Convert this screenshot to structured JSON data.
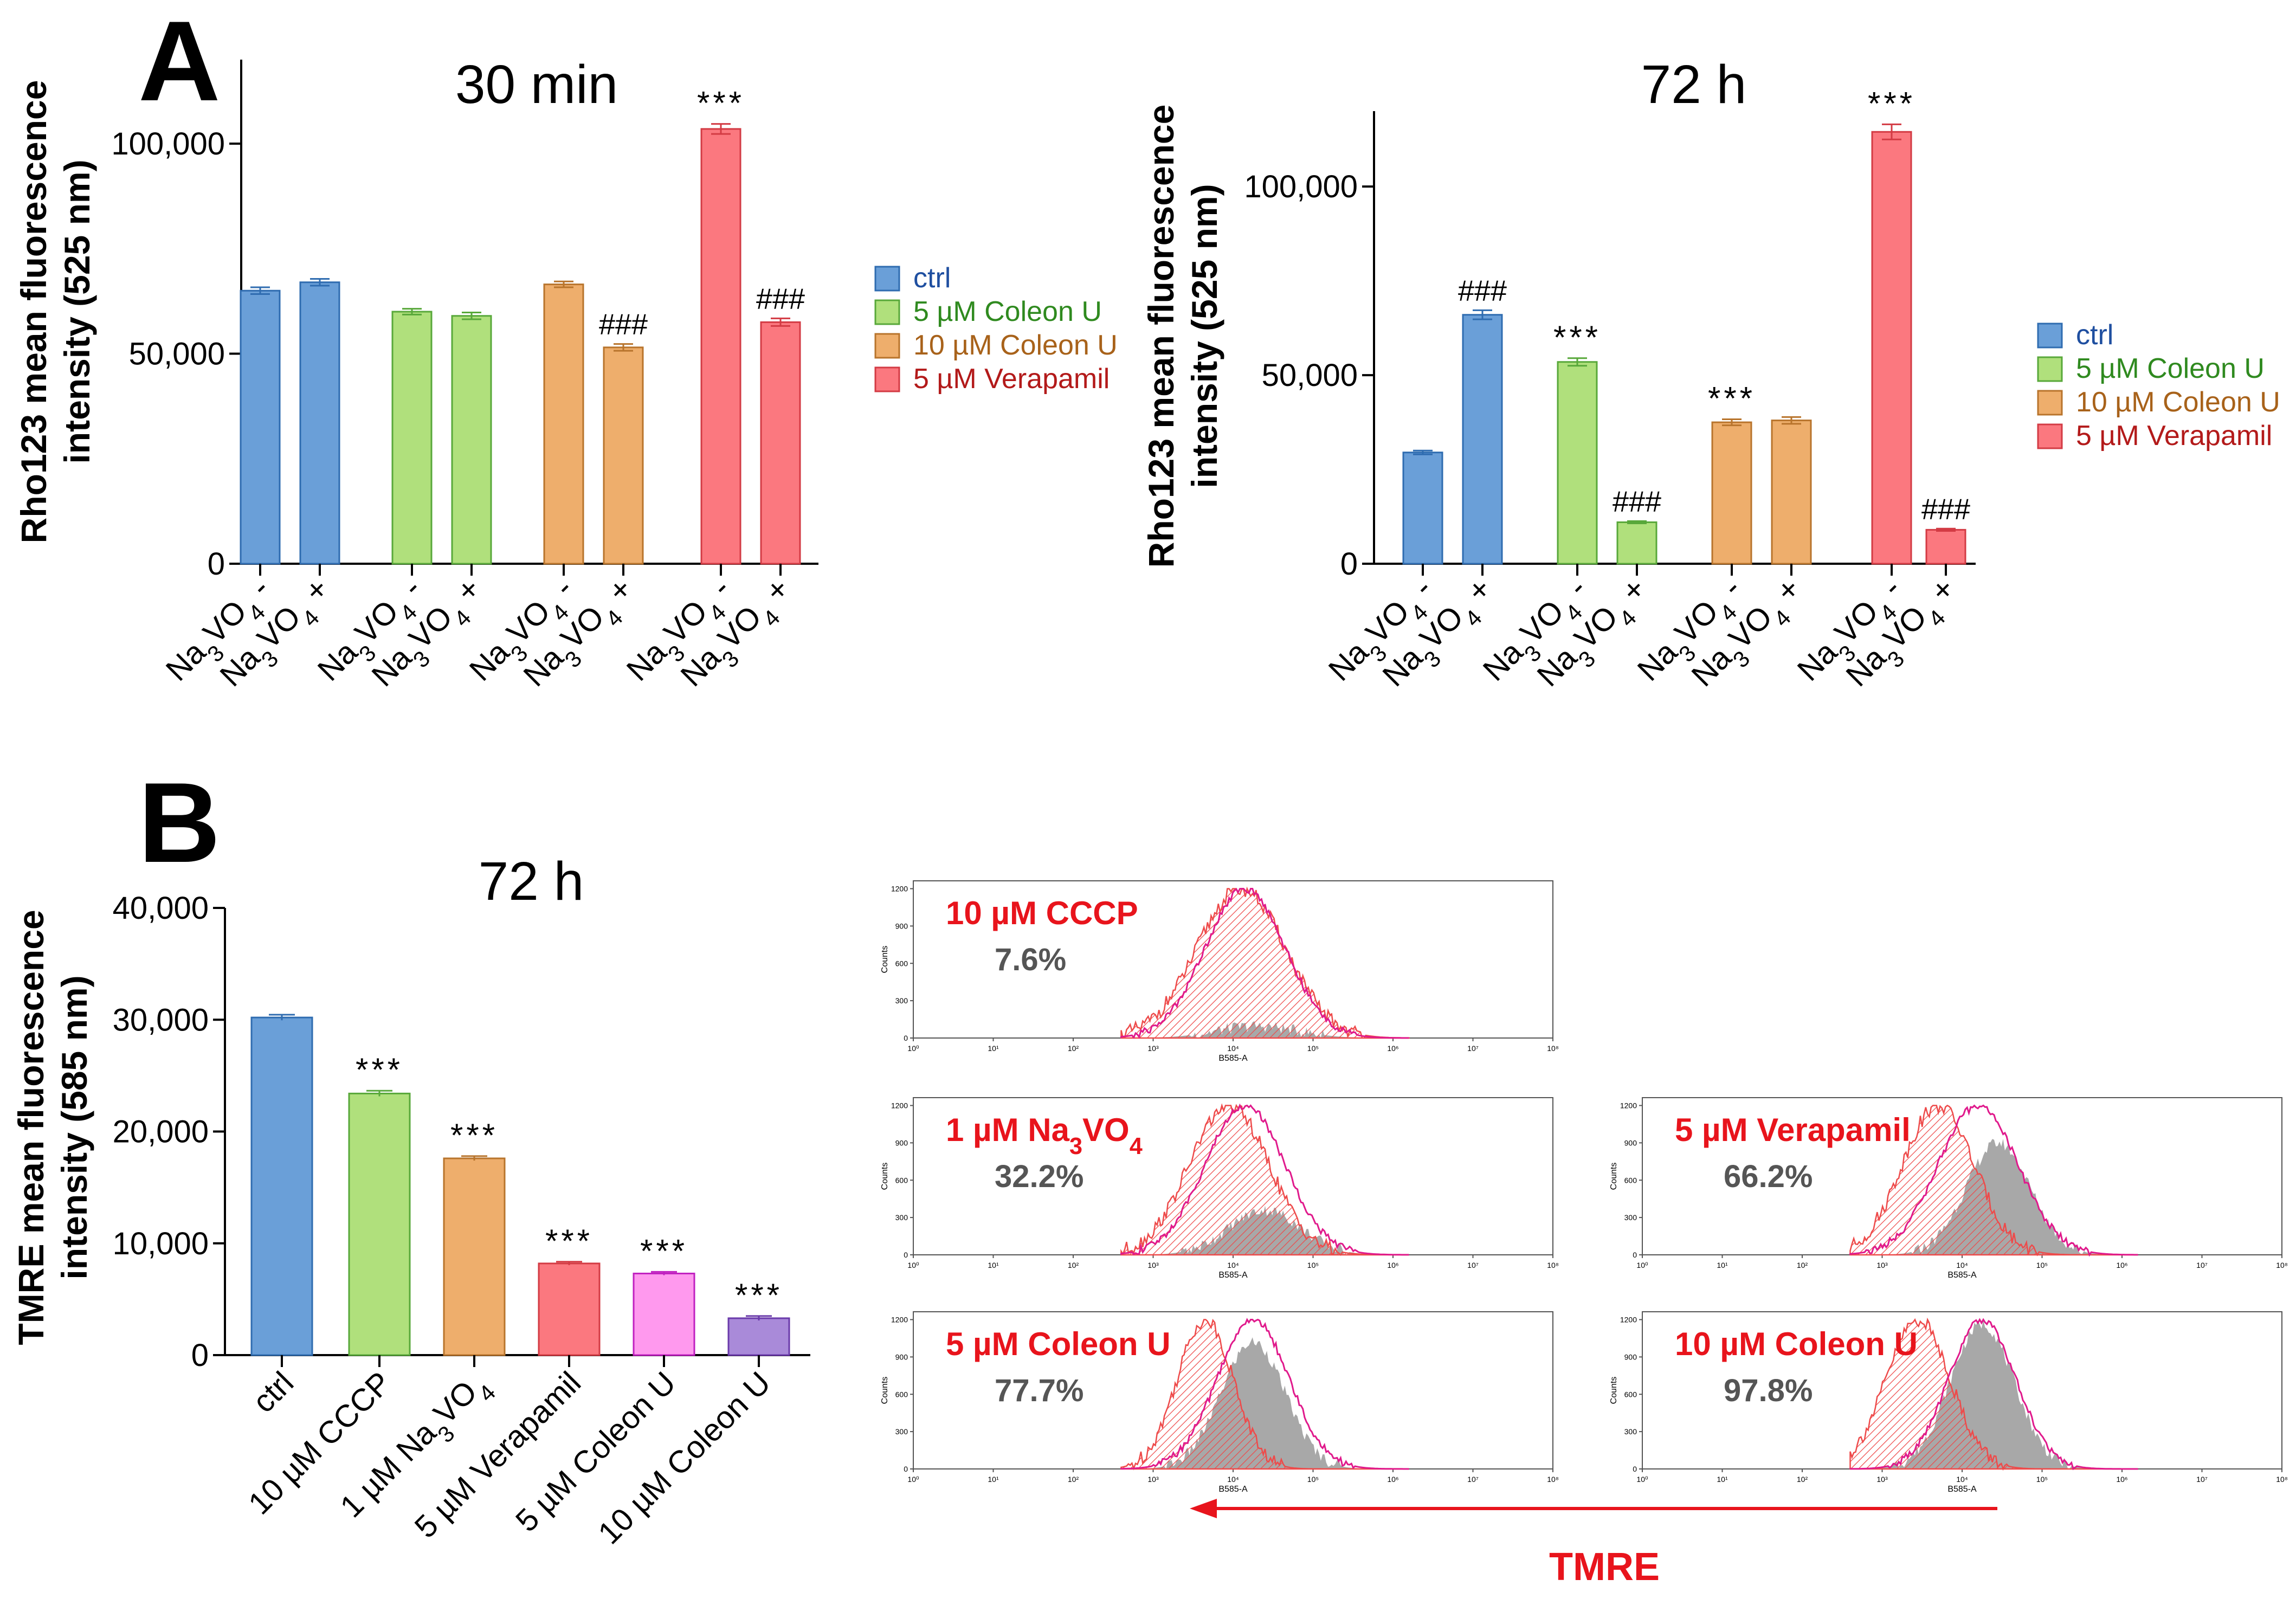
{
  "panels": {
    "a_letter": "A",
    "b_letter": "B"
  },
  "legend": [
    {
      "label": "ctrl",
      "color": "#6a9fd8",
      "stroke": "#2f6cb0",
      "text_color": "#1f4fa0"
    },
    {
      "label": "5 µM Coleon U",
      "color": "#b0e07c",
      "stroke": "#58a83a",
      "text_color": "#2f8a1f"
    },
    {
      "label": "10 µM Coleon U",
      "color": "#eeae6c",
      "stroke": "#b8742c",
      "text_color": "#a8621a"
    },
    {
      "label": "5 µM Verapamil",
      "color": "#fb787f",
      "stroke": "#d33b44",
      "text_color": "#b31a1a"
    }
  ],
  "chart_data": [
    {
      "id": "a30",
      "type": "bar",
      "title": "30 min",
      "ylabel": [
        "Rho123 mean fluorescence",
        "intensity (525 nm)"
      ],
      "ylim": [
        0,
        120000
      ],
      "yticks": [
        0,
        50000,
        100000
      ],
      "ytick_labels": [
        "0",
        "50,000",
        "100,000"
      ],
      "xtick_labels": [
        "Na3VO4 -",
        "Na3VO4 +",
        "Na3VO4 -",
        "Na3VO4 +",
        "Na3VO4 -",
        "Na3VO4 +",
        "Na3VO4 -",
        "Na3VO4 +"
      ],
      "series": [
        {
          "name": "ctrl",
          "values": [
            65000,
            67000
          ],
          "errors": [
            800,
            800
          ],
          "annotations": [
            "",
            ""
          ]
        },
        {
          "name": "5 µM Coleon U",
          "values": [
            60000,
            59000
          ],
          "errors": [
            700,
            800
          ],
          "annotations": [
            "",
            ""
          ]
        },
        {
          "name": "10 µM Coleon U",
          "values": [
            66500,
            51500
          ],
          "errors": [
            700,
            800
          ],
          "annotations": [
            "",
            "###"
          ]
        },
        {
          "name": "5 µM Verapamil",
          "values": [
            103500,
            57500
          ],
          "errors": [
            1200,
            900
          ],
          "annotations": [
            "***",
            "###"
          ]
        }
      ]
    },
    {
      "id": "a72",
      "type": "bar",
      "title": "72 h",
      "ylabel": [
        "Rho123 mean fluorescence",
        "intensity (525 nm)"
      ],
      "ylim": [
        0,
        120000
      ],
      "yticks": [
        0,
        50000,
        100000
      ],
      "ytick_labels": [
        "0",
        "50,000",
        "100,000"
      ],
      "xtick_labels": [
        "Na3VO4 -",
        "Na3VO4 +",
        "Na3VO4 -",
        "Na3VO4 +",
        "Na3VO4 -",
        "Na3VO4 +",
        "Na3VO4 -",
        "Na3VO4 +"
      ],
      "series": [
        {
          "name": "ctrl",
          "values": [
            29500,
            66000
          ],
          "errors": [
            500,
            1200
          ],
          "annotations": [
            "",
            "###"
          ]
        },
        {
          "name": "5 µM Coleon U",
          "values": [
            53500,
            11000
          ],
          "errors": [
            1000,
            300
          ],
          "annotations": [
            "***",
            "###"
          ]
        },
        {
          "name": "10 µM Coleon U",
          "values": [
            37500,
            38000
          ],
          "errors": [
            800,
            900
          ],
          "annotations": [
            "***",
            ""
          ]
        },
        {
          "name": "5 µM Verapamil",
          "values": [
            114500,
            9000
          ],
          "errors": [
            2000,
            300
          ],
          "annotations": [
            "***",
            "###"
          ]
        }
      ]
    },
    {
      "id": "b72",
      "type": "bar",
      "title": "72 h",
      "ylabel": [
        "TMRE mean fluorescence",
        "intensity (585 nm)"
      ],
      "ylim": [
        0,
        40000
      ],
      "yticks": [
        0,
        10000,
        20000,
        30000,
        40000
      ],
      "ytick_labels": [
        "0",
        "10,000",
        "20,000",
        "30,000",
        "40,000"
      ],
      "categories": [
        "ctrl",
        "10 µM CCCP",
        "1 µM Na3VO4",
        "5 µM Verapamil",
        "5 µM Coleon U",
        "10 µM Coleon U"
      ],
      "values": [
        30200,
        23400,
        17600,
        8200,
        7300,
        3300
      ],
      "errors": [
        250,
        250,
        200,
        150,
        150,
        200
      ],
      "annotations": [
        "",
        "***",
        "***",
        "***",
        "***",
        "***"
      ],
      "colors": [
        "#6a9fd8",
        "#b0e07c",
        "#eeae6c",
        "#fb787f",
        "#ff99ee",
        "#a98ad9"
      ],
      "strokes": [
        "#2f6cb0",
        "#58a83a",
        "#b8742c",
        "#d33b44",
        "#c020c0",
        "#6a3aaa"
      ]
    }
  ],
  "histograms": {
    "x_axis_label": "B585-A",
    "y_axis_label": "Counts",
    "y_ticks": [
      "0",
      "300",
      "600",
      "900",
      "1200"
    ],
    "x_ticks": [
      "10⁰",
      "10¹",
      "10²",
      "10³",
      "10⁴",
      "10⁵",
      "10⁶",
      "10⁷",
      "10⁸"
    ],
    "label_color": "#e8141c",
    "pct_color": "#555555",
    "items": [
      {
        "id": "h1",
        "label": "10 µM CCCP",
        "percent": "7.6%",
        "red_center": 4.1,
        "red_width": 0.55,
        "gray_center": 4.3,
        "gray_width": 0.5,
        "gray_scale": 0.08,
        "mag_center": 4.15,
        "mag_width": 0.5
      },
      {
        "id": "h2",
        "label": "1 µM Na3VO4",
        "percent": "32.2%",
        "red_center": 3.95,
        "red_width": 0.5,
        "gray_center": 4.4,
        "gray_width": 0.45,
        "gray_scale": 0.3,
        "mag_center": 4.15,
        "mag_width": 0.5
      },
      {
        "id": "h3",
        "label": "5 µM Verapamil",
        "percent": "66.2%",
        "red_center": 3.7,
        "red_width": 0.45,
        "gray_center": 4.45,
        "gray_width": 0.4,
        "gray_scale": 0.75,
        "mag_center": 4.2,
        "mag_width": 0.5
      },
      {
        "id": "h4",
        "label": "5 µM Coleon U",
        "percent": "77.7%",
        "red_center": 3.65,
        "red_width": 0.35,
        "gray_center": 4.25,
        "gray_width": 0.4,
        "gray_scale": 0.85,
        "mag_center": 4.25,
        "mag_width": 0.45
      },
      {
        "id": "h5",
        "label": "10 µM Coleon U",
        "percent": "97.8%",
        "red_center": 3.45,
        "red_width": 0.4,
        "gray_center": 4.25,
        "gray_width": 0.4,
        "gray_scale": 0.97,
        "mag_center": 4.25,
        "mag_width": 0.42
      }
    ]
  },
  "tmre_label": "TMRE",
  "colors": {
    "arrow": "#e8141c",
    "axis": "#000000",
    "hist_red": "#ee4a4a",
    "hist_magenta": "#e01a8c",
    "hist_gray": "#a8a8a8"
  }
}
